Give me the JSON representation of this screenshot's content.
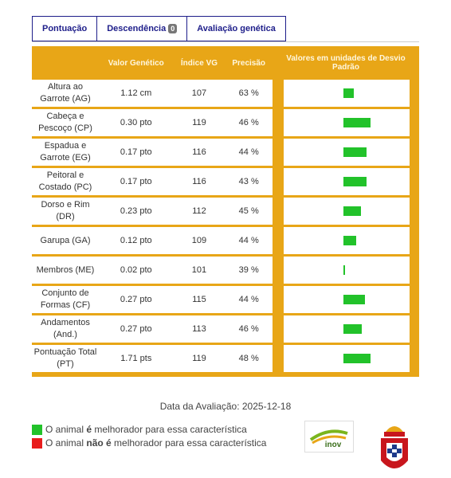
{
  "tabs": [
    {
      "label": "Pontuação"
    },
    {
      "label": "Descendência",
      "badge": "0"
    },
    {
      "label": "Avaliação genética"
    }
  ],
  "table": {
    "headers": [
      "Valor Genético",
      "Índice VG",
      "Precisão",
      "Valores em unidades de Desvio Padrão"
    ],
    "rows": [
      [
        "Altura ao Garrote (AG)",
        "1.12 cm",
        "107",
        "63 %"
      ],
      [
        "Cabeça e Pescoço (CP)",
        "0.30 pto",
        "119",
        "46 %"
      ],
      [
        "Espadua e Garrote (EG)",
        "0.17 pto",
        "116",
        "44 %"
      ],
      [
        "Peitoral e Costado (PC)",
        "0.17 pto",
        "116",
        "43 %"
      ],
      [
        "Dorso e Rim (DR)",
        "0.23 pto",
        "112",
        "45 %"
      ],
      [
        "Garupa (GA)",
        "0.12 pto",
        "109",
        "44 %"
      ],
      [
        "Membros (ME)",
        "0.02 pto",
        "101",
        "39 %"
      ],
      [
        "Conjunto de Formas (CF)",
        "0.27 pto",
        "115",
        "44 %"
      ],
      [
        "Andamentos (And.)",
        "0.27 pto",
        "113",
        "46 %"
      ],
      [
        "Pontuação Total (PT)",
        "1.71 pts",
        "119",
        "48 %"
      ]
    ]
  },
  "evaluation_date": "Data da Avaliação: 2025-12-18",
  "legend": [
    {
      "color": "#22c22a",
      "parts": [
        "O animal ",
        "é",
        " melhorador para essa característica"
      ]
    },
    {
      "color": "#e81c1c",
      "parts": [
        "O animal ",
        "não é",
        " melhorador para essa característica"
      ]
    }
  ],
  "logo": "inov"
}
